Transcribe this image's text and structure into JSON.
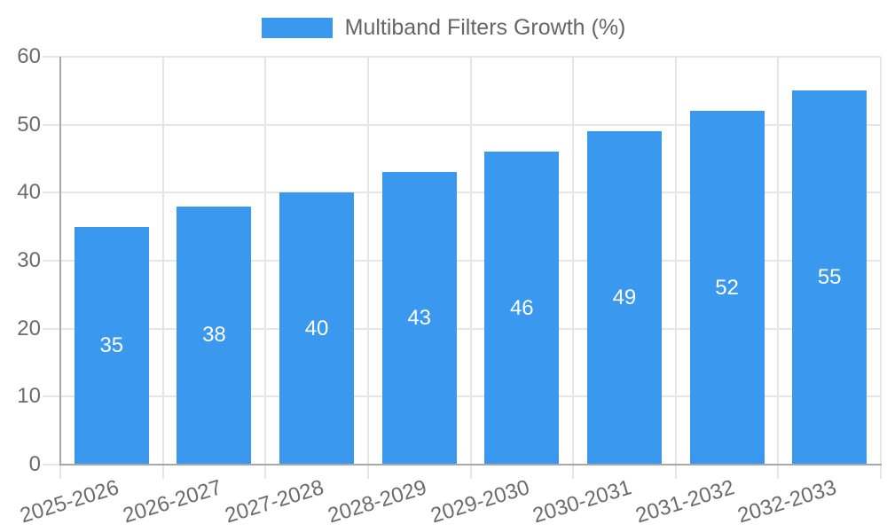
{
  "chart_data": {
    "type": "bar",
    "title": "Multiband Filters Growth (%)",
    "categories": [
      "2025-2026",
      "2026-2027",
      "2027-2028",
      "2028-2029",
      "2029-2030",
      "2030-2031",
      "2031-2032",
      "2032-2033"
    ],
    "values": [
      35,
      38,
      40,
      43,
      46,
      49,
      52,
      55
    ],
    "value_labels": [
      "35",
      "38",
      "40",
      "43",
      "46",
      "49",
      "52",
      "55"
    ],
    "ytick_labels": [
      "0",
      "10",
      "20",
      "30",
      "40",
      "50",
      "60"
    ],
    "yticks": [
      0,
      10,
      20,
      30,
      40,
      50,
      60
    ],
    "ylim": [
      0,
      60
    ],
    "xlabel": "",
    "ylabel": "",
    "grid": true,
    "legend_position": "top",
    "colors": {
      "bar": "#3a98ee",
      "bar_label": "#ffffff",
      "grid": "#e6e6e6",
      "axis": "#a8a8a8",
      "tick_label": "#6b6b6b",
      "legend_text": "#666666"
    }
  }
}
